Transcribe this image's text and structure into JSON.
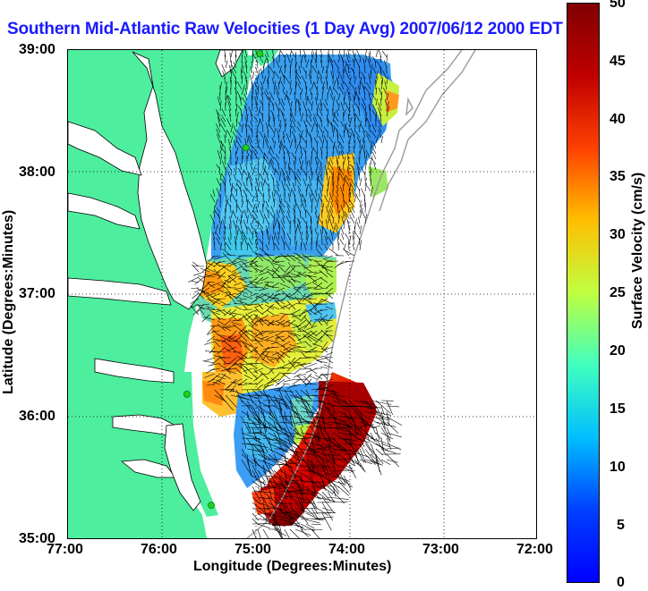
{
  "title": "Southern Mid-Atlantic Raw Velocities (1 Day Avg) 2007/06/12 2000 EDT",
  "axes": {
    "xlabel": "Longitude (Degrees:Minutes)",
    "ylabel": "Latitude (Degrees:Minutes)",
    "x_ticks": [
      "77:00",
      "76:00",
      "75:00",
      "74:00",
      "73:00",
      "72:00"
    ],
    "y_ticks": [
      "39:00",
      "38:00",
      "37:00",
      "36:00",
      "35:00"
    ],
    "x_range": [
      -77,
      -72
    ],
    "y_range": [
      35,
      39
    ]
  },
  "colorbar": {
    "label": "Surface Velocity (cm/s)",
    "ticks": [
      "50",
      "45",
      "40",
      "35",
      "30",
      "25",
      "20",
      "15",
      "10",
      "5",
      "0"
    ],
    "range": [
      0,
      50
    ],
    "colormap": "jet"
  },
  "colors": {
    "land": "#4dee9e",
    "title": "#1a1aff",
    "station": "#1fd01f",
    "isobath": "#9a9a9a"
  },
  "stations": [
    {
      "name": "",
      "lon": -74.95,
      "lat": 38.97
    },
    {
      "name": "",
      "lon": -75.1,
      "lat": 38.2
    },
    {
      "name": "",
      "lon": -75.73,
      "lat": 36.18
    },
    {
      "name": "",
      "lon": -75.47,
      "lat": 35.27
    }
  ]
}
